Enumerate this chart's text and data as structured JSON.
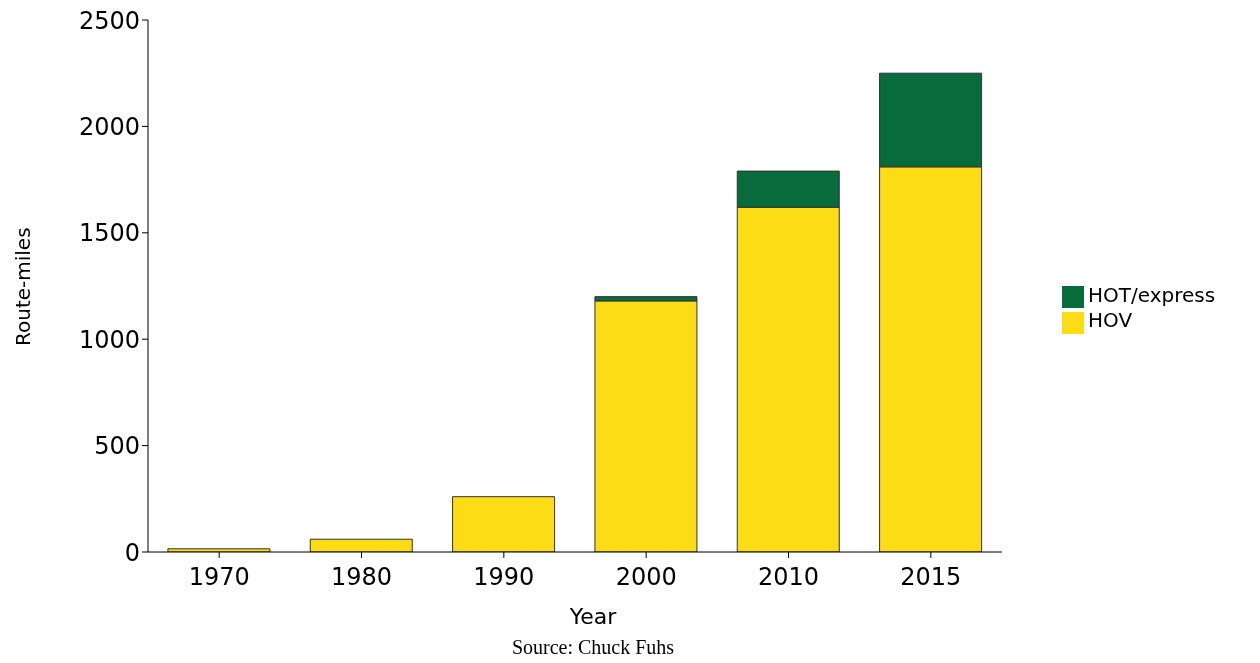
{
  "chart_data": {
    "type": "bar",
    "stacked": true,
    "xlabel": "Year",
    "ylabel": "Route-miles",
    "annotations": [
      "Source: Chuck Fuhs"
    ],
    "categories": [
      "1970",
      "1980",
      "1990",
      "2000",
      "2010",
      "2015"
    ],
    "series": [
      {
        "name": "HOV",
        "color": "#fcdc14",
        "values": [
          15,
          60,
          260,
          1180,
          1620,
          1810
        ]
      },
      {
        "name": "HOT/express",
        "color": "#076b3b",
        "values": [
          0,
          0,
          0,
          20,
          170,
          440
        ]
      }
    ],
    "ylim": [
      0,
      2500
    ],
    "yticks": [
      0,
      500,
      1000,
      1500,
      2000,
      2500
    ],
    "grid": false,
    "legend": "right"
  }
}
